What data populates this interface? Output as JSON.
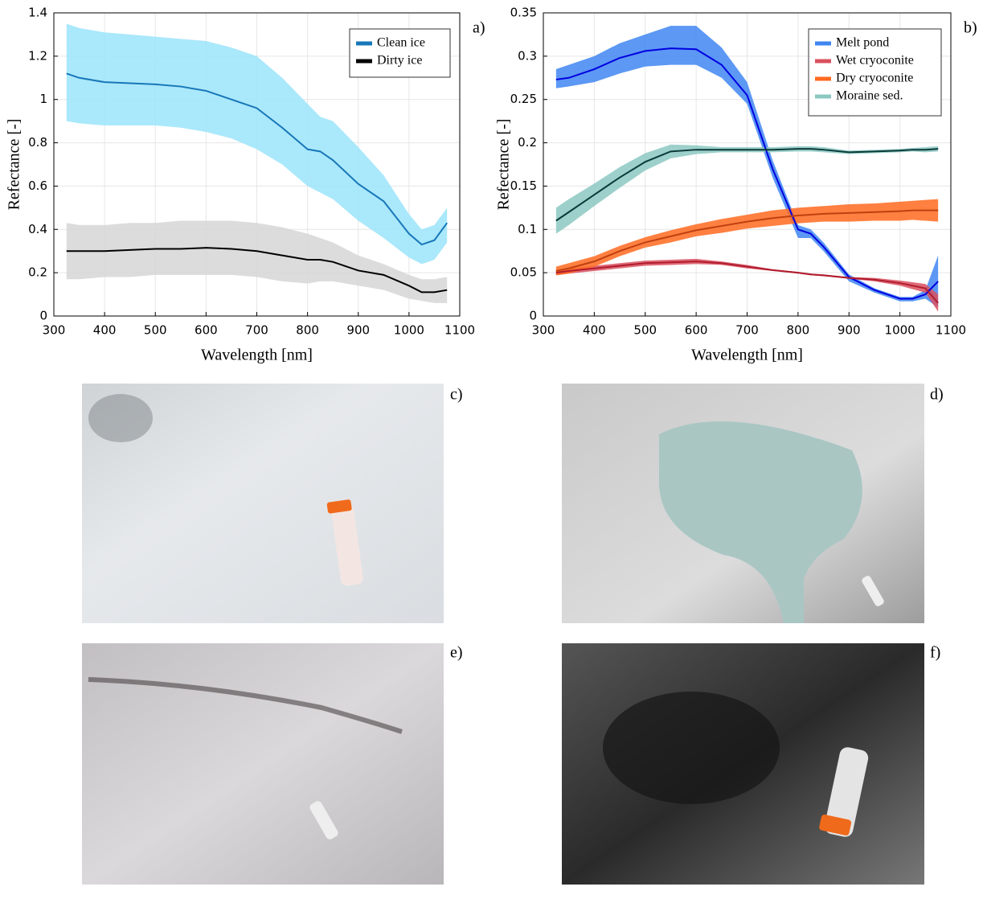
{
  "chart_data": [
    {
      "type": "line",
      "panel_label": "a)",
      "xlabel": "Wavelength [nm]",
      "ylabel": "Refectance [-]",
      "x": [
        325,
        350,
        400,
        450,
        500,
        550,
        600,
        650,
        700,
        750,
        800,
        825,
        850,
        900,
        950,
        1000,
        1025,
        1050,
        1075
      ],
      "xlim": [
        300,
        1100
      ],
      "xticks": [
        300,
        400,
        500,
        600,
        700,
        800,
        900,
        1000,
        1100
      ],
      "ylim": [
        0,
        1.4
      ],
      "yticks": [
        0,
        0.2,
        0.4,
        0.6,
        0.8,
        1,
        1.2,
        1.4
      ],
      "grid": true,
      "legend": "upper right",
      "series": [
        {
          "name": "Clean ice",
          "color": "#1777b8",
          "band_color": "#9be4fa",
          "values": [
            1.12,
            1.1,
            1.08,
            1.075,
            1.07,
            1.06,
            1.04,
            1.0,
            0.96,
            0.87,
            0.77,
            0.76,
            0.72,
            0.61,
            0.53,
            0.38,
            0.33,
            0.35,
            0.43
          ],
          "upper": [
            1.35,
            1.33,
            1.31,
            1.3,
            1.29,
            1.28,
            1.27,
            1.24,
            1.2,
            1.1,
            0.98,
            0.92,
            0.9,
            0.78,
            0.65,
            0.47,
            0.4,
            0.42,
            0.5
          ],
          "lower": [
            0.9,
            0.89,
            0.88,
            0.88,
            0.88,
            0.87,
            0.85,
            0.82,
            0.77,
            0.7,
            0.6,
            0.57,
            0.54,
            0.44,
            0.36,
            0.27,
            0.24,
            0.26,
            0.34
          ]
        },
        {
          "name": "Dirty ice",
          "color": "#000000",
          "band_color": "#d6d6d6",
          "values": [
            0.3,
            0.3,
            0.3,
            0.305,
            0.31,
            0.31,
            0.315,
            0.31,
            0.3,
            0.28,
            0.26,
            0.26,
            0.25,
            0.21,
            0.19,
            0.14,
            0.11,
            0.11,
            0.12
          ],
          "upper": [
            0.43,
            0.42,
            0.42,
            0.43,
            0.43,
            0.44,
            0.44,
            0.44,
            0.43,
            0.41,
            0.38,
            0.36,
            0.34,
            0.28,
            0.24,
            0.19,
            0.17,
            0.17,
            0.18
          ],
          "lower": [
            0.17,
            0.17,
            0.18,
            0.18,
            0.19,
            0.19,
            0.19,
            0.19,
            0.18,
            0.16,
            0.15,
            0.16,
            0.16,
            0.14,
            0.12,
            0.08,
            0.07,
            0.06,
            0.06
          ]
        }
      ]
    },
    {
      "type": "line",
      "panel_label": "b)",
      "xlabel": "Wavelength [nm]",
      "ylabel": "Refectance [-]",
      "x": [
        325,
        350,
        400,
        450,
        500,
        550,
        600,
        650,
        700,
        750,
        800,
        825,
        850,
        900,
        950,
        1000,
        1025,
        1050,
        1075
      ],
      "xlim": [
        300,
        1100
      ],
      "xticks": [
        300,
        400,
        500,
        600,
        700,
        800,
        900,
        1000,
        1100
      ],
      "ylim": [
        0,
        0.35
      ],
      "yticks": [
        0,
        0.05,
        0.1,
        0.15,
        0.2,
        0.25,
        0.3,
        0.35
      ],
      "grid": true,
      "legend": "upper right",
      "series": [
        {
          "name": "Melt pond",
          "color": "#0000e0",
          "band_color": "#3f86f2",
          "values": [
            0.273,
            0.275,
            0.285,
            0.298,
            0.306,
            0.309,
            0.308,
            0.29,
            0.255,
            0.17,
            0.1,
            0.095,
            0.08,
            0.045,
            0.03,
            0.02,
            0.02,
            0.025,
            0.04
          ],
          "upper": [
            0.285,
            0.29,
            0.3,
            0.315,
            0.325,
            0.335,
            0.335,
            0.31,
            0.27,
            0.18,
            0.105,
            0.1,
            0.085,
            0.048,
            0.032,
            0.022,
            0.022,
            0.03,
            0.07
          ],
          "lower": [
            0.263,
            0.265,
            0.27,
            0.28,
            0.288,
            0.29,
            0.29,
            0.275,
            0.245,
            0.16,
            0.09,
            0.09,
            0.075,
            0.04,
            0.027,
            0.017,
            0.017,
            0.02,
            0.01
          ]
        },
        {
          "name": "Wet cryoconite",
          "color": "#b01c2e",
          "band_color": "#d9505e",
          "values": [
            0.05,
            0.052,
            0.055,
            0.058,
            0.061,
            0.062,
            0.063,
            0.061,
            0.057,
            0.053,
            0.05,
            0.048,
            0.047,
            0.044,
            0.042,
            0.038,
            0.035,
            0.032,
            0.015
          ],
          "upper": [
            0.053,
            0.055,
            0.058,
            0.061,
            0.064,
            0.065,
            0.066,
            0.063,
            0.059,
            0.054,
            0.051,
            0.049,
            0.048,
            0.045,
            0.044,
            0.041,
            0.039,
            0.037,
            0.025
          ],
          "lower": [
            0.047,
            0.049,
            0.052,
            0.055,
            0.058,
            0.059,
            0.06,
            0.059,
            0.055,
            0.052,
            0.049,
            0.047,
            0.046,
            0.043,
            0.04,
            0.035,
            0.031,
            0.027,
            0.005
          ]
        },
        {
          "name": "Dry cryoconite",
          "color": "#c04010",
          "band_color": "#ff6a20",
          "values": [
            0.052,
            0.055,
            0.063,
            0.075,
            0.085,
            0.092,
            0.099,
            0.104,
            0.109,
            0.113,
            0.116,
            0.117,
            0.118,
            0.119,
            0.12,
            0.121,
            0.122,
            0.122,
            0.122
          ],
          "upper": [
            0.057,
            0.061,
            0.069,
            0.081,
            0.091,
            0.099,
            0.106,
            0.112,
            0.117,
            0.122,
            0.125,
            0.126,
            0.127,
            0.129,
            0.13,
            0.132,
            0.133,
            0.134,
            0.135
          ],
          "lower": [
            0.047,
            0.049,
            0.057,
            0.069,
            0.079,
            0.085,
            0.092,
            0.096,
            0.101,
            0.104,
            0.107,
            0.108,
            0.109,
            0.109,
            0.11,
            0.11,
            0.111,
            0.11,
            0.109
          ]
        },
        {
          "name": "Moraine sed.",
          "color": "#0a3a3a",
          "band_color": "#8cc8c2",
          "values": [
            0.11,
            0.12,
            0.14,
            0.16,
            0.178,
            0.19,
            0.192,
            0.192,
            0.192,
            0.192,
            0.193,
            0.193,
            0.192,
            0.189,
            0.19,
            0.191,
            0.192,
            0.192,
            0.193
          ],
          "upper": [
            0.125,
            0.135,
            0.153,
            0.172,
            0.188,
            0.198,
            0.197,
            0.195,
            0.195,
            0.195,
            0.196,
            0.196,
            0.195,
            0.191,
            0.192,
            0.193,
            0.194,
            0.195,
            0.196
          ],
          "lower": [
            0.095,
            0.105,
            0.127,
            0.148,
            0.168,
            0.182,
            0.187,
            0.189,
            0.189,
            0.189,
            0.19,
            0.19,
            0.189,
            0.187,
            0.188,
            0.189,
            0.19,
            0.189,
            0.19
          ]
        }
      ]
    }
  ],
  "photos": [
    {
      "label": "c)"
    },
    {
      "label": "d)"
    },
    {
      "label": "e)"
    },
    {
      "label": "f)"
    }
  ]
}
